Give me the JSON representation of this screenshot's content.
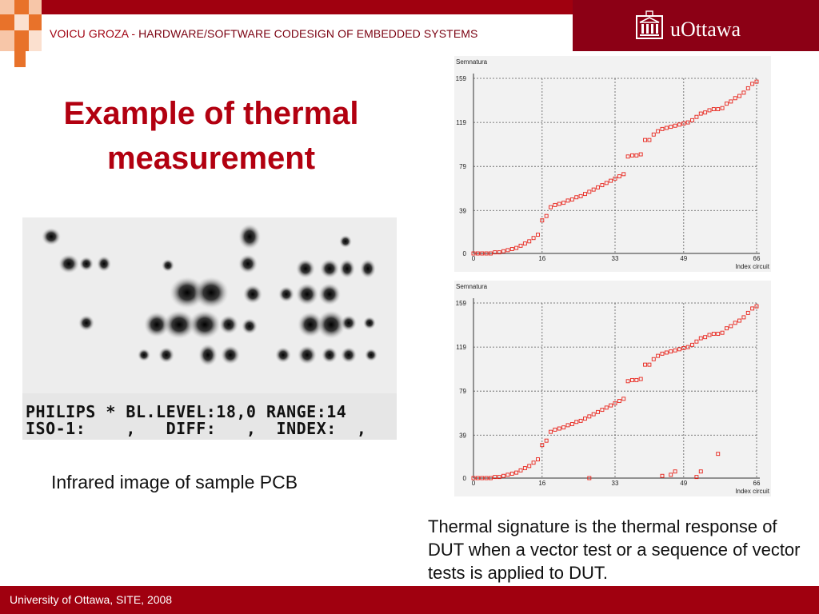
{
  "header": {
    "title_prefix": "VOICU GROZA - ",
    "title_rest": "HARDWARE/SOFTWARE CODESIGN OF EMBEDDED SYSTEMS",
    "logo_text": "uOttawa"
  },
  "colors": {
    "brand": "#a0000f",
    "title": "#b20010",
    "marker": "#e8231a",
    "grid": "#5a5a5a"
  },
  "slide": {
    "title": "Example of thermal measurement",
    "left_caption": "Infrared image of sample PCB",
    "right_caption": "Thermal signature is the thermal response of DUT when a vector test or a sequence of vector tests is applied to DUT."
  },
  "ir_image": {
    "line1": "PHILIPS * BL.LEVEL:18,0 RANGE:14",
    "line2": "ISO-1:    ,   DIFF:   ,  INDEX:  ,"
  },
  "chart_data": [
    {
      "type": "scatter",
      "ylabel": "Semnatura",
      "xlabel": "Index circuit",
      "xticks": [
        0,
        16,
        33,
        49,
        66
      ],
      "yticks": [
        0,
        39,
        79,
        119,
        159
      ],
      "xlim": [
        0,
        66
      ],
      "ylim": [
        0,
        159
      ],
      "grid": true,
      "marker": "open-square",
      "x": [
        0,
        1,
        2,
        3,
        4,
        5,
        6,
        7,
        8,
        9,
        10,
        11,
        12,
        13,
        14,
        15,
        16,
        17,
        18,
        19,
        20,
        21,
        22,
        23,
        24,
        25,
        26,
        27,
        28,
        29,
        30,
        31,
        32,
        33,
        34,
        35,
        36,
        37,
        38,
        39,
        40,
        41,
        42,
        43,
        44,
        45,
        46,
        47,
        48,
        49,
        50,
        51,
        52,
        53,
        54,
        55,
        56,
        57,
        58,
        59,
        60,
        61,
        62,
        63,
        64,
        65,
        66
      ],
      "y": [
        0,
        0,
        0,
        0,
        0,
        1,
        1,
        2,
        3,
        4,
        5,
        7,
        9,
        11,
        14,
        17,
        30,
        34,
        42,
        44,
        45,
        46,
        48,
        49,
        51,
        52,
        54,
        56,
        58,
        60,
        62,
        64,
        66,
        68,
        70,
        72,
        88,
        89,
        89,
        90,
        103,
        103,
        108,
        111,
        113,
        114,
        115,
        116,
        117,
        118,
        119,
        121,
        124,
        127,
        128,
        130,
        131,
        131,
        132,
        136,
        138,
        141,
        143,
        146,
        150,
        154,
        156
      ]
    },
    {
      "type": "scatter",
      "ylabel": "Semnatura",
      "xlabel": "Index circuit",
      "xticks": [
        0,
        16,
        33,
        49,
        66
      ],
      "yticks": [
        0,
        39,
        79,
        119,
        159
      ],
      "xlim": [
        0,
        66
      ],
      "ylim": [
        0,
        159
      ],
      "grid": true,
      "marker": "open-square",
      "x": [
        0,
        1,
        2,
        3,
        4,
        5,
        6,
        7,
        8,
        9,
        10,
        11,
        12,
        13,
        14,
        15,
        16,
        17,
        18,
        19,
        20,
        21,
        22,
        23,
        24,
        25,
        26,
        27,
        28,
        29,
        30,
        31,
        32,
        33,
        34,
        35,
        36,
        37,
        38,
        39,
        40,
        41,
        42,
        43,
        44,
        45,
        46,
        47,
        48,
        49,
        50,
        51,
        52,
        53,
        54,
        55,
        56,
        57,
        58,
        59,
        60,
        61,
        62,
        63,
        64,
        65,
        66,
        27,
        44,
        46,
        47,
        52,
        53,
        57
      ],
      "y": [
        0,
        0,
        0,
        0,
        0,
        1,
        1,
        2,
        3,
        4,
        5,
        7,
        9,
        11,
        14,
        17,
        30,
        34,
        42,
        44,
        45,
        46,
        48,
        49,
        51,
        52,
        54,
        56,
        58,
        60,
        62,
        64,
        66,
        68,
        70,
        72,
        88,
        89,
        89,
        90,
        103,
        103,
        108,
        111,
        113,
        114,
        115,
        116,
        117,
        118,
        119,
        121,
        124,
        127,
        128,
        130,
        131,
        131,
        132,
        136,
        138,
        141,
        143,
        146,
        150,
        154,
        156,
        0,
        2,
        3,
        6,
        1,
        6,
        22
      ]
    }
  ],
  "footer": {
    "text": "University of Ottawa, SITE, 2008"
  }
}
